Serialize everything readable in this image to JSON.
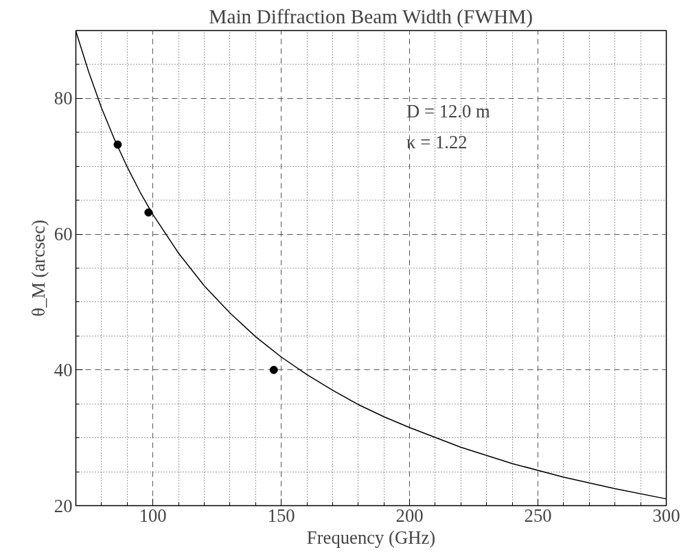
{
  "chart_data": {
    "type": "line",
    "title": "Main Diffraction Beam Width (FWHM)",
    "xlabel": "Frequency (GHz)",
    "ylabel": "θ_M (arcsec)",
    "xlim": [
      70,
      300
    ],
    "ylim": [
      20,
      90
    ],
    "xticks": [
      {
        "value": 80,
        "label": null
      },
      {
        "value": 90,
        "label": null
      },
      100,
      {
        "value": 110,
        "label": null
      },
      {
        "value": 120,
        "label": null
      },
      {
        "value": 130,
        "label": null
      },
      {
        "value": 140,
        "label": null
      },
      150,
      {
        "value": 160,
        "label": null
      },
      {
        "value": 170,
        "label": null
      },
      {
        "value": 180,
        "label": null
      },
      {
        "value": 190,
        "label": null
      },
      200,
      {
        "value": 210,
        "label": null
      },
      {
        "value": 220,
        "label": null
      },
      {
        "value": 230,
        "label": null
      },
      {
        "value": 240,
        "label": null
      },
      250,
      {
        "value": 260,
        "label": null
      },
      {
        "value": 270,
        "label": null
      },
      {
        "value": 280,
        "label": null
      },
      {
        "value": 290,
        "label": null
      },
      300
    ],
    "yticks": [
      20,
      {
        "value": 25,
        "label": null
      },
      {
        "value": 30,
        "label": null
      },
      {
        "value": 35,
        "label": null
      },
      40,
      {
        "value": 45,
        "label": null
      },
      {
        "value": 50,
        "label": null
      },
      {
        "value": 55,
        "label": null
      },
      60,
      {
        "value": 65,
        "label": null
      },
      {
        "value": 70,
        "label": null
      },
      {
        "value": 75,
        "label": null
      },
      80,
      {
        "value": 85,
        "label": null
      }
    ],
    "grid": true,
    "series": [
      {
        "color": "#000000",
        "marker": "none",
        "line_style": "solid",
        "x": [
          70,
          75,
          80,
          85,
          90,
          95,
          100,
          110,
          120,
          130,
          140,
          150,
          160,
          170,
          180,
          190,
          200,
          220,
          240,
          260,
          280,
          300
        ],
        "values": [
          89.9,
          83.9,
          78.6,
          74.0,
          69.9,
          66.2,
          62.9,
          57.2,
          52.4,
          48.4,
          44.9,
          41.9,
          39.3,
          37.0,
          34.9,
          33.1,
          31.5,
          28.6,
          26.2,
          24.2,
          22.5,
          21.0
        ]
      },
      {
        "type": "scatter",
        "color": "#000000",
        "marker": "circle",
        "x": [
          86.3,
          98.3,
          147.1
        ],
        "values": [
          73.2,
          63.2,
          40.0
        ]
      }
    ],
    "annotations": [
      "D = 12.0 m",
      "κ = 1.22"
    ]
  }
}
